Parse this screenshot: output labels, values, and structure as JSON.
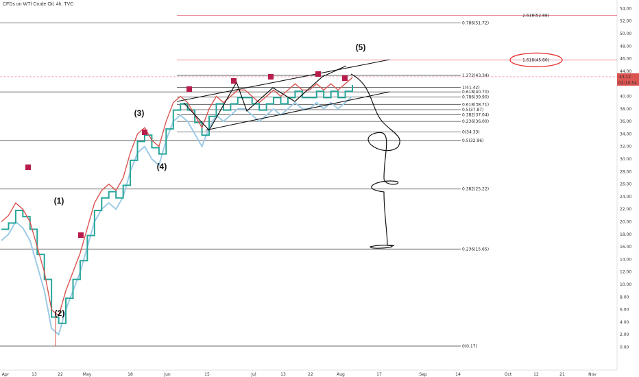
{
  "title": "CFDs on WTI Crude Oil, 4h, TVC",
  "chart_data": {
    "type": "line",
    "ylim": [
      -1,
      55
    ],
    "y_ticks": [
      0,
      2,
      4,
      6,
      8,
      10,
      12,
      14,
      16,
      18,
      20,
      22,
      24,
      26,
      28,
      30,
      32,
      34,
      36,
      38,
      40,
      42,
      44,
      46,
      48,
      50,
      52,
      54
    ],
    "x_ticks": [
      "Apr",
      "13",
      "22",
      "May",
      "18",
      "Jun",
      "15",
      "Jul",
      "13",
      "22",
      "Aug",
      "17",
      "Sep",
      "14",
      "Oct",
      "12",
      "21",
      "Nov"
    ],
    "price_label": "43.12",
    "countdown_label": "02:10:54",
    "series": [
      {
        "values": [
          20,
          21,
          23,
          22,
          20,
          16,
          12,
          6,
          5,
          9,
          12,
          15,
          19,
          23,
          25,
          26,
          25,
          27,
          31,
          34,
          35,
          33,
          32,
          36,
          39,
          40,
          39,
          37,
          35,
          38,
          40,
          39,
          40,
          41,
          41,
          40,
          39,
          40,
          41,
          40,
          41,
          42,
          41,
          41,
          42,
          41,
          42,
          41,
          42,
          43
        ]
      }
    ],
    "fib_levels": [
      {
        "value": 51.72,
        "label": "0.786(51.72)"
      },
      {
        "value": 52.88,
        "label": "2.618(52.88)",
        "color": "#e05b6c"
      },
      {
        "value": 45.8,
        "label": "1.618(45.80)",
        "color": "#e05b6c"
      },
      {
        "value": 43.34,
        "label": "1.272(43.34)"
      },
      {
        "value": 41.42,
        "label": "1(41.42)"
      },
      {
        "value": 40.7,
        "label": "0.618(40.70)"
      },
      {
        "value": 39.9,
        "label": "0.786(39.90)"
      },
      {
        "value": 38.71,
        "label": "0.618(38.71)"
      },
      {
        "value": 37.87,
        "label": "0.5(37.87)"
      },
      {
        "value": 37.04,
        "label": "0.382(37.04)"
      },
      {
        "value": 36.0,
        "label": "0.236(36.00)"
      },
      {
        "value": 34.33,
        "label": "0(34.33)"
      },
      {
        "value": 32.96,
        "label": "0.5(32.96)"
      },
      {
        "value": 25.22,
        "label": "0.382(25.22)"
      },
      {
        "value": 15.65,
        "label": "0.236(15.65)"
      },
      {
        "value": 0.17,
        "label": "0(0.17)"
      }
    ],
    "wave_labels": [
      {
        "label": "(1)",
        "value": 23
      },
      {
        "label": "(2)",
        "value": 4
      },
      {
        "label": "(3)",
        "value": 37
      },
      {
        "label": "(4)",
        "value": 28
      },
      {
        "label": "(5)",
        "value": 47
      }
    ],
    "colors": {
      "price": "#d9534f",
      "support": "#26a69a",
      "band": "#9ecbe6",
      "fib_red": "#e05b6c"
    }
  }
}
